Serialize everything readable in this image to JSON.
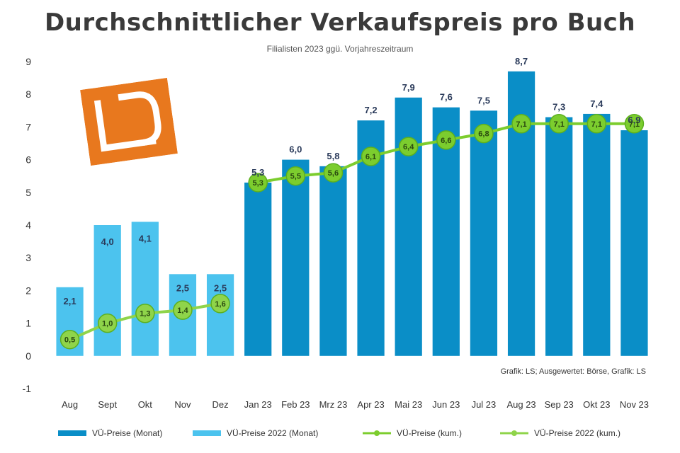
{
  "title": "Durchschnittlicher Verkaufspreis pro Buch",
  "subtitle": "Filialisten 2023 ggü. Vorjahreszeitraum",
  "source": "Grafik: LS; Ausgewertet: Börse, Grafik: LS",
  "chart_data": {
    "type": "bar",
    "categories": [
      "Aug",
      "Sept",
      "Okt",
      "Nov",
      "Dez",
      "Jan 23",
      "Feb 23",
      "Mrz 23",
      "Apr 23",
      "Mai 23",
      "Jun 23",
      "Jul 23",
      "Aug 23",
      "Sep 23",
      "Okt 23",
      "Nov 23"
    ],
    "ylim": [
      -1,
      9
    ],
    "yticks": [
      "-1",
      "0",
      "1",
      "2",
      "3",
      "4",
      "5",
      "6",
      "7",
      "8",
      "9"
    ],
    "series": [
      {
        "name": "VÜ-Preise (Monat)",
        "kind": "bar",
        "color": "#0a8ec7",
        "values": [
          null,
          null,
          null,
          null,
          null,
          5.3,
          6.0,
          5.8,
          7.2,
          7.9,
          7.6,
          7.5,
          8.7,
          7.3,
          7.4,
          6.9
        ],
        "labels": [
          "",
          "",
          "",
          "",
          "",
          "5,3",
          "6,0",
          "5,8",
          "7,2",
          "7,9",
          "7,6",
          "7,5",
          "8,7",
          "7,3",
          "7,4",
          "6,9"
        ]
      },
      {
        "name": "VÜ-Preise 2022 (Monat)",
        "kind": "bar",
        "color": "#4cc3ee",
        "values": [
          2.1,
          4.0,
          4.1,
          2.5,
          2.5,
          null,
          null,
          null,
          null,
          null,
          null,
          null,
          null,
          null,
          null,
          null
        ],
        "labels": [
          "2,1",
          "4,0",
          "4,1",
          "2,5",
          "2,5",
          "",
          "",
          "",
          "",
          "",
          "",
          "",
          "",
          "",
          "",
          ""
        ]
      },
      {
        "name": "VÜ-Preise (kum.)",
        "kind": "line",
        "color": "#7ccd2e",
        "values": [
          null,
          null,
          null,
          null,
          null,
          5.3,
          5.5,
          5.6,
          6.1,
          6.4,
          6.6,
          6.8,
          7.1,
          7.1,
          7.1,
          7.1
        ],
        "labels": [
          "",
          "",
          "",
          "",
          "",
          "5,3",
          "5,5",
          "5,6",
          "6,1",
          "6,4",
          "6,6",
          "6,8",
          "7,1",
          "7,1",
          "7,1",
          "7,1"
        ]
      },
      {
        "name": "VÜ-Preise 2022 (kum.)",
        "kind": "line",
        "color": "#8fd44a",
        "values": [
          0.5,
          1.0,
          1.3,
          1.4,
          1.6,
          null,
          null,
          null,
          null,
          null,
          null,
          null,
          null,
          null,
          null,
          null
        ],
        "labels": [
          "0,5",
          "1,0",
          "1,3",
          "1,4",
          "1,6",
          "",
          "",
          "",
          "",
          "",
          "",
          "",
          "",
          "",
          "",
          ""
        ]
      }
    ],
    "grid": false,
    "legend": "bottom"
  },
  "colors": {
    "logo_orange": "#e8781e",
    "label_text": "#2a3a5a"
  }
}
